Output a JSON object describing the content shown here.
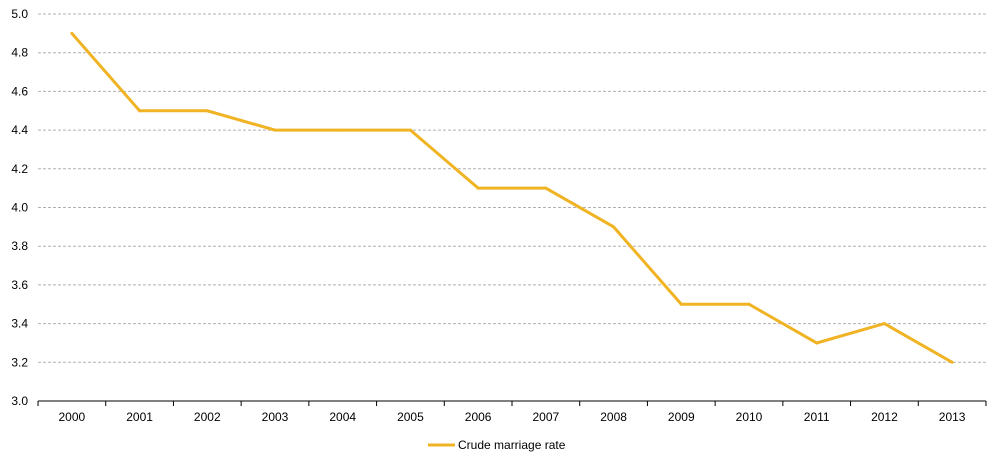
{
  "chart_data": {
    "type": "line",
    "categories": [
      "2000",
      "2001",
      "2002",
      "2003",
      "2004",
      "2005",
      "2006",
      "2007",
      "2008",
      "2009",
      "2010",
      "2011",
      "2012",
      "2013"
    ],
    "series": [
      {
        "name": "Crude marriage rate",
        "values": [
          4.9,
          4.5,
          4.5,
          4.4,
          4.4,
          4.4,
          4.1,
          4.1,
          3.9,
          3.5,
          3.5,
          3.3,
          3.4,
          3.2
        ],
        "color": "#F0B323"
      }
    ],
    "title": "",
    "xlabel": "",
    "ylabel": "",
    "ylim": [
      3.0,
      5.0
    ],
    "yticks": [
      "3.0",
      "3.2",
      "3.4",
      "3.6",
      "3.8",
      "4.0",
      "4.2",
      "4.4",
      "4.6",
      "4.8",
      "5.0"
    ],
    "grid": true,
    "grid_style": "dashed-horizontal",
    "legend_position": "bottom-center"
  }
}
